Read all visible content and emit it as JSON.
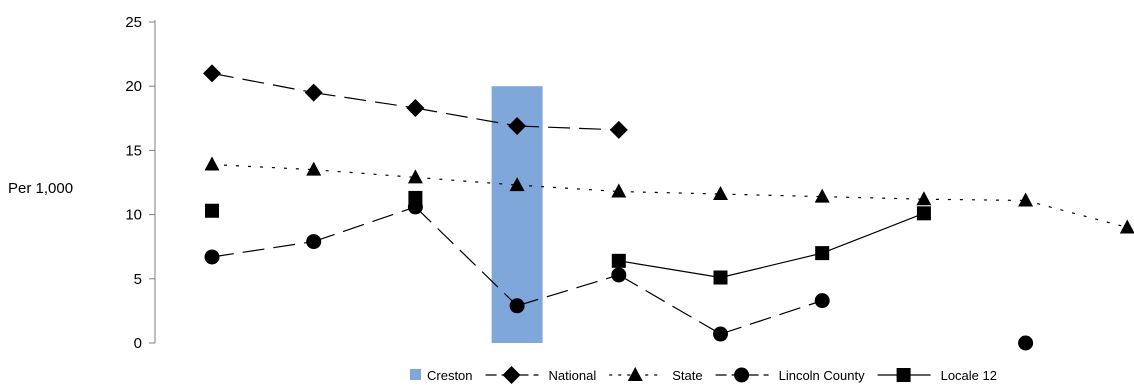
{
  "chart_data": {
    "type": "line",
    "ylabel": "Per 1,000",
    "ylim": [
      0,
      25
    ],
    "yticks": [
      0,
      5,
      10,
      15,
      20,
      25
    ],
    "x": [
      1,
      2,
      3,
      4,
      5,
      6,
      7,
      8,
      9,
      10
    ],
    "grid": false,
    "legend_position": "bottom-right",
    "series": [
      {
        "name": "Creston",
        "type": "bar",
        "color": "#7fa7d9",
        "values": [
          null,
          null,
          null,
          20,
          null,
          null,
          null,
          null,
          null,
          null
        ]
      },
      {
        "name": "National",
        "marker": "diamond",
        "line": "long-dash",
        "color": "#000000",
        "values": [
          21.0,
          19.5,
          18.3,
          16.9,
          16.6,
          null,
          null,
          null,
          null,
          null
        ]
      },
      {
        "name": "State",
        "marker": "triangle",
        "line": "dotted",
        "color": "#000000",
        "values": [
          13.9,
          13.5,
          12.9,
          12.3,
          11.8,
          11.6,
          11.4,
          11.2,
          11.1,
          9.0
        ]
      },
      {
        "name": "Lincoln County",
        "marker": "circle",
        "line": "long-dash",
        "color": "#000000",
        "values": [
          6.7,
          7.9,
          10.6,
          2.9,
          5.3,
          0.7,
          3.3,
          null,
          0.0,
          null
        ]
      },
      {
        "name": "Locale 12",
        "marker": "square",
        "line": "solid",
        "color": "#000000",
        "values": [
          10.3,
          null,
          11.3,
          null,
          6.4,
          5.1,
          7.0,
          10.1,
          null,
          null
        ]
      }
    ]
  }
}
